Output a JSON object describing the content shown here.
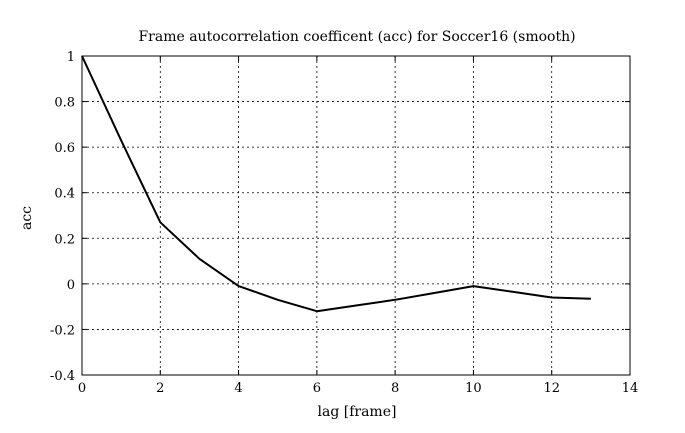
{
  "chart_data": {
    "type": "line",
    "title": "Frame autocorrelation coefficent (acc) for Soccer16 (smooth)",
    "xlabel": "lag [frame]",
    "ylabel": "acc",
    "xlim": [
      0,
      14
    ],
    "ylim": [
      -0.4,
      1
    ],
    "xticks": [
      0,
      2,
      4,
      6,
      8,
      10,
      12,
      14
    ],
    "yticks": [
      -0.4,
      -0.2,
      0,
      0.2,
      0.4,
      0.6,
      0.8,
      1
    ],
    "xtick_labels": [
      "0",
      "2",
      "4",
      "6",
      "8",
      "10",
      "12",
      "14"
    ],
    "ytick_labels": [
      "-0.4",
      "-0.2",
      "0",
      "0.2",
      "0.4",
      "0.6",
      "0.8",
      "1"
    ],
    "grid": true,
    "series": [
      {
        "x": [
          0,
          1,
          2,
          3,
          4,
          5,
          6,
          7,
          8,
          9,
          10,
          11,
          12,
          13
        ],
        "values": [
          1.0,
          0.63,
          0.27,
          0.11,
          -0.01,
          -0.07,
          -0.12,
          -0.095,
          -0.07,
          -0.04,
          -0.01,
          -0.035,
          -0.06,
          -0.065
        ],
        "color": "#000000"
      }
    ]
  }
}
